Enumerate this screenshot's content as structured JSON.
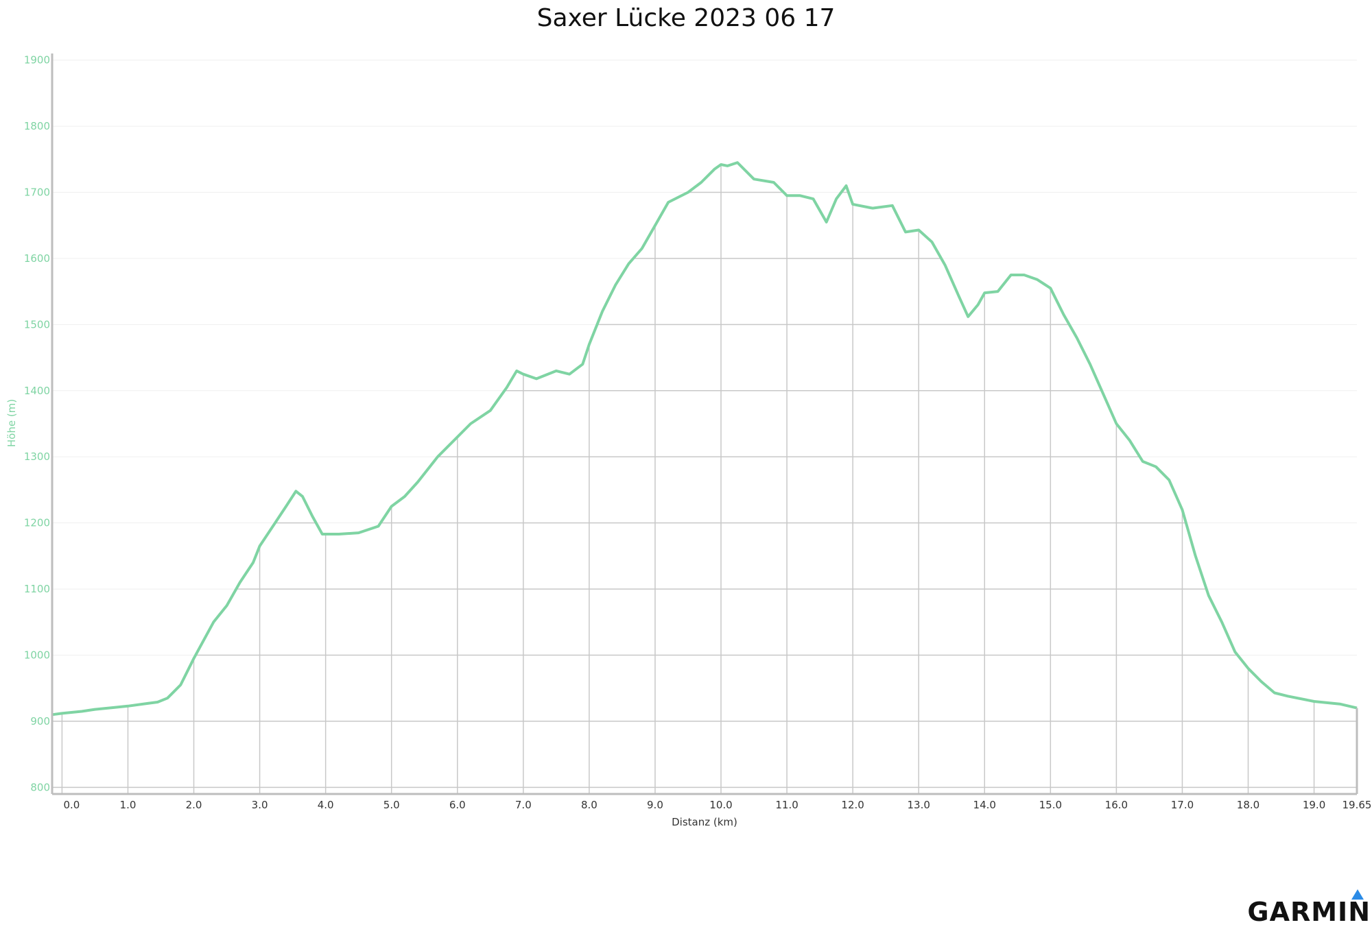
{
  "chart_data": {
    "type": "area",
    "title": "Saxer Lücke 2023 06 17",
    "xlabel": "Distanz (km)",
    "ylabel": "Höhe (m)",
    "xlim": [
      -0.15,
      19.65
    ],
    "ylim": [
      790,
      1910
    ],
    "yticks": [
      800,
      900,
      1000,
      1100,
      1200,
      1300,
      1400,
      1500,
      1600,
      1700,
      1800,
      1900
    ],
    "xticks": [
      0,
      1,
      2,
      3,
      4,
      5,
      6,
      7,
      8,
      9,
      10,
      11,
      12,
      13,
      14,
      15,
      16,
      17,
      18,
      19,
      19.65
    ],
    "xtick_labels": [
      "0.0",
      "1.0",
      "2.0",
      "3.0",
      "4.0",
      "5.0",
      "6.0",
      "7.0",
      "8.0",
      "9.0",
      "10.0",
      "11.0",
      "12.0",
      "13.0",
      "14.0",
      "15.0",
      "16.0",
      "17.0",
      "18.0",
      "19.0",
      "19.65"
    ],
    "grid": true,
    "colors": {
      "line": "#7fd4a3",
      "fill": "#ffffff",
      "grid": "#c8c8c8",
      "tick_y": "#7fd4a3"
    },
    "series": [
      {
        "x": [
          -0.15,
          0.0,
          0.3,
          0.5,
          0.8,
          1.0,
          1.3,
          1.45,
          1.6,
          1.8,
          2.0,
          2.3,
          2.5,
          2.7,
          2.9,
          3.0,
          3.2,
          3.4,
          3.55,
          3.65,
          3.8,
          3.95,
          4.2,
          4.5,
          4.8,
          5.0,
          5.2,
          5.4,
          5.7,
          6.0,
          6.2,
          6.5,
          6.75,
          6.9,
          7.0,
          7.2,
          7.5,
          7.7,
          7.9,
          8.0,
          8.2,
          8.4,
          8.6,
          8.8,
          9.0,
          9.2,
          9.5,
          9.7,
          9.9,
          10.0,
          10.1,
          10.25,
          10.5,
          10.8,
          11.0,
          11.2,
          11.4,
          11.6,
          11.75,
          11.9,
          12.0,
          12.3,
          12.6,
          12.8,
          13.0,
          13.2,
          13.4,
          13.6,
          13.75,
          13.9,
          14.0,
          14.2,
          14.4,
          14.6,
          14.8,
          15.0,
          15.2,
          15.4,
          15.6,
          15.8,
          16.0,
          16.2,
          16.4,
          16.6,
          16.8,
          17.0,
          17.2,
          17.4,
          17.6,
          17.8,
          18.0,
          18.2,
          18.4,
          18.6,
          19.0,
          19.4,
          19.65
        ],
        "y": [
          910,
          912,
          915,
          918,
          921,
          923,
          927,
          929,
          935,
          955,
          995,
          1050,
          1075,
          1110,
          1140,
          1165,
          1195,
          1225,
          1248,
          1240,
          1210,
          1183,
          1183,
          1185,
          1195,
          1225,
          1240,
          1262,
          1300,
          1330,
          1350,
          1370,
          1405,
          1430,
          1425,
          1418,
          1430,
          1425,
          1440,
          1470,
          1520,
          1560,
          1592,
          1615,
          1650,
          1685,
          1700,
          1715,
          1735,
          1742,
          1740,
          1745,
          1720,
          1715,
          1695,
          1695,
          1690,
          1655,
          1690,
          1710,
          1682,
          1676,
          1680,
          1640,
          1643,
          1625,
          1590,
          1545,
          1512,
          1530,
          1548,
          1550,
          1575,
          1575,
          1568,
          1555,
          1515,
          1480,
          1440,
          1395,
          1350,
          1325,
          1293,
          1285,
          1265,
          1220,
          1150,
          1090,
          1050,
          1005,
          980,
          960,
          943,
          938,
          930,
          926,
          920
        ]
      }
    ]
  },
  "brand": {
    "name": "GARMIN"
  }
}
